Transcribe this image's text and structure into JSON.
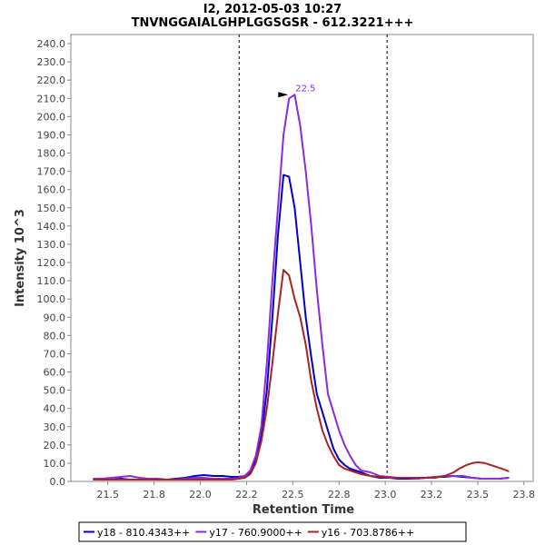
{
  "chart_data": {
    "type": "line",
    "title": "I2, 2012-05-03 10:27",
    "subtitle": "TNVNGGAIALGHPLGGSGSR - 612.3221+++",
    "xlabel": "Retention Time",
    "ylabel": "Intensity 10^3",
    "xlim": [
      21.3,
      23.8
    ],
    "ylim": [
      0,
      245
    ],
    "x_ticks": [
      "21.5",
      "21.8",
      "22.0",
      "22.2",
      "22.5",
      "22.8",
      "23.0",
      "23.2",
      "23.5",
      "23.8"
    ],
    "x_tick_values": [
      21.5,
      21.75,
      22.0,
      22.25,
      22.5,
      22.75,
      23.0,
      23.25,
      23.5,
      23.75
    ],
    "y_ticks": [
      "0.0",
      "10.0",
      "20.0",
      "30.0",
      "40.0",
      "50.0",
      "60.0",
      "70.0",
      "80.0",
      "90.0",
      "100.0",
      "110.0",
      "120.0",
      "130.0",
      "140.0",
      "150.0",
      "160.0",
      "170.0",
      "180.0",
      "190.0",
      "200.0",
      "210.0",
      "220.0",
      "230.0",
      "240.0"
    ],
    "y_tick_values": [
      0,
      10,
      20,
      30,
      40,
      50,
      60,
      70,
      80,
      90,
      100,
      110,
      120,
      130,
      140,
      150,
      160,
      170,
      180,
      190,
      200,
      210,
      220,
      230,
      240
    ],
    "boundaries": [
      22.21,
      23.01
    ],
    "peak_annotation": {
      "label": "22.5",
      "x": 22.49,
      "y": 212,
      "color": "#8a2be2"
    },
    "grid": false,
    "legend_position": "bottom",
    "series": [
      {
        "name": "y18 - 810.4343++",
        "color": "#0000cc",
        "x": [
          21.42,
          21.47,
          21.52,
          21.57,
          21.62,
          21.67,
          21.72,
          21.77,
          21.82,
          21.87,
          21.92,
          21.97,
          22.02,
          22.07,
          22.12,
          22.17,
          22.21,
          22.24,
          22.27,
          22.3,
          22.33,
          22.36,
          22.39,
          22.42,
          22.45,
          22.48,
          22.51,
          22.54,
          22.57,
          22.6,
          22.63,
          22.66,
          22.69,
          22.72,
          22.75,
          22.78,
          22.81,
          22.84,
          22.87,
          22.92,
          22.97,
          23.02,
          23.07,
          23.12,
          23.17,
          23.22,
          23.27,
          23.32,
          23.37,
          23.42,
          23.47,
          23.52,
          23.57,
          23.62,
          23.67
        ],
        "y": [
          1,
          1,
          1,
          1.5,
          1,
          1,
          1.5,
          1,
          1,
          1.5,
          2,
          3,
          3.5,
          3,
          3,
          2.5,
          2.5,
          3,
          5,
          12,
          25,
          50,
          90,
          135,
          168,
          167,
          150,
          120,
          90,
          68,
          48,
          38,
          28,
          18,
          12,
          9,
          7,
          6,
          5,
          3,
          2,
          2,
          1.5,
          1.5,
          1.5,
          2,
          2.5,
          2.5,
          3,
          2.5,
          2,
          1.5,
          1.5,
          1.5,
          2
        ]
      },
      {
        "name": "y17 - 760.9000++",
        "color": "#8a2be2",
        "x": [
          21.42,
          21.47,
          21.52,
          21.57,
          21.62,
          21.67,
          21.72,
          21.77,
          21.82,
          21.87,
          21.92,
          21.97,
          22.02,
          22.07,
          22.12,
          22.17,
          22.21,
          22.24,
          22.27,
          22.3,
          22.33,
          22.36,
          22.39,
          22.42,
          22.45,
          22.48,
          22.51,
          22.54,
          22.57,
          22.6,
          22.63,
          22.66,
          22.69,
          22.72,
          22.75,
          22.78,
          22.81,
          22.84,
          22.87,
          22.92,
          22.97,
          23.02,
          23.07,
          23.12,
          23.17,
          23.22,
          23.27,
          23.32,
          23.37,
          23.42,
          23.47,
          23.52,
          23.57,
          23.62,
          23.67
        ],
        "y": [
          1.5,
          1.5,
          2,
          2.5,
          3,
          2,
          1.5,
          1.5,
          1,
          1,
          1.5,
          2,
          2,
          1.5,
          1.5,
          1.5,
          2,
          3,
          6,
          14,
          30,
          65,
          110,
          150,
          190,
          210,
          212,
          195,
          170,
          140,
          105,
          75,
          48,
          38,
          28,
          20,
          14,
          9,
          6,
          5,
          3,
          2.5,
          2,
          2,
          1.5,
          2,
          2.5,
          3,
          3,
          3,
          2,
          1.5,
          1.5,
          1.5,
          2
        ]
      },
      {
        "name": "y16 - 703.8786++",
        "color": "#aa2222",
        "x": [
          21.42,
          21.47,
          21.52,
          21.57,
          21.62,
          21.67,
          21.72,
          21.77,
          21.82,
          21.87,
          21.92,
          21.97,
          22.02,
          22.07,
          22.12,
          22.17,
          22.21,
          22.24,
          22.27,
          22.3,
          22.33,
          22.36,
          22.39,
          22.42,
          22.45,
          22.48,
          22.51,
          22.54,
          22.57,
          22.6,
          22.63,
          22.66,
          22.69,
          22.72,
          22.75,
          22.78,
          22.81,
          22.84,
          22.87,
          22.92,
          22.97,
          23.02,
          23.07,
          23.12,
          23.17,
          23.22,
          23.27,
          23.32,
          23.37,
          23.4,
          23.44,
          23.47,
          23.5,
          23.54,
          23.57,
          23.6,
          23.63,
          23.67
        ],
        "y": [
          1,
          1,
          1,
          1,
          1,
          1,
          1,
          1,
          1,
          1,
          1,
          1,
          1,
          1,
          1,
          1,
          1.5,
          2,
          4,
          10,
          22,
          40,
          65,
          92,
          116,
          113,
          100,
          90,
          75,
          55,
          40,
          28,
          20,
          14,
          9,
          7,
          6,
          5,
          4,
          3,
          2.5,
          2,
          2,
          2,
          2,
          2,
          2,
          3,
          5,
          7,
          9,
          10,
          10.5,
          10,
          9,
          8,
          7,
          5.5
        ]
      }
    ]
  }
}
